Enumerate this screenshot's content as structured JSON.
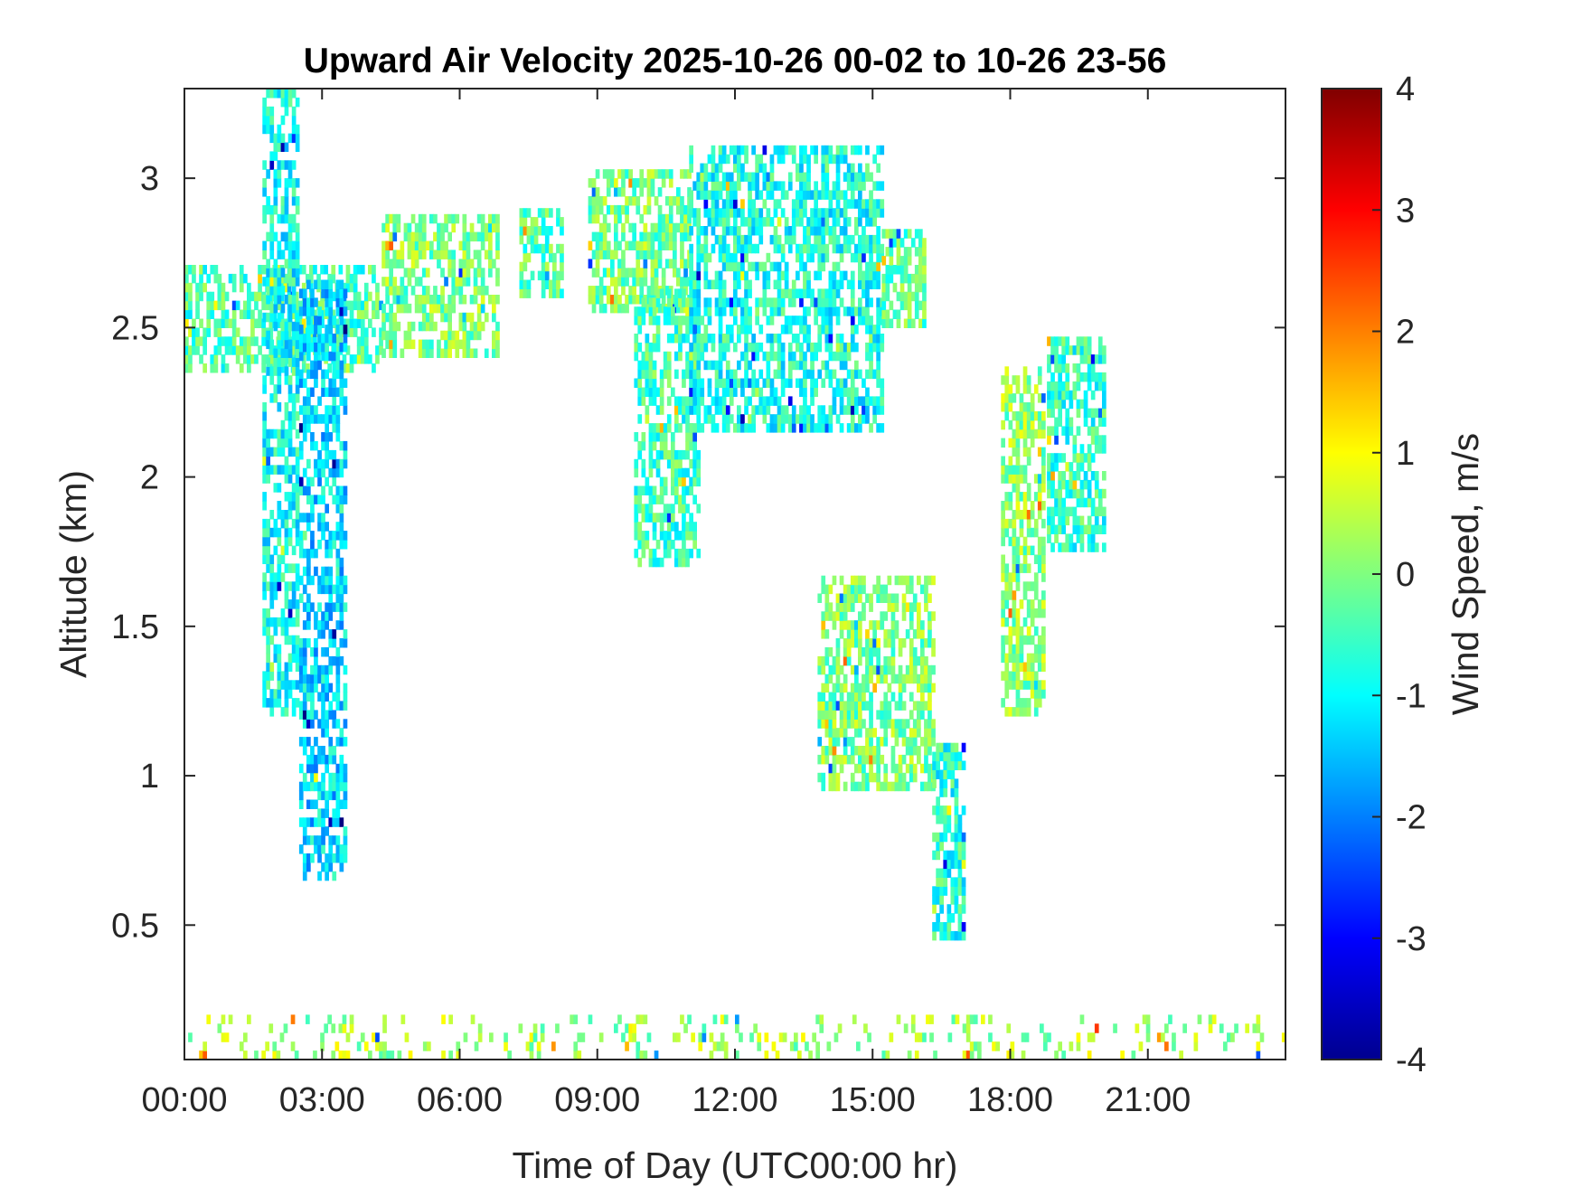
{
  "chart_data": {
    "type": "heatmap",
    "title": "Upward Air Velocity 2025-10-26 00-02 to 10-26 23-56",
    "xlabel": "Time of Day (UTC00:00 hr)",
    "ylabel": "Altitude (km)",
    "x_tick_labels": [
      "00:00",
      "03:00",
      "06:00",
      "09:00",
      "12:00",
      "15:00",
      "18:00",
      "21:00"
    ],
    "x_tick_hours": [
      0,
      3,
      6,
      9,
      12,
      15,
      18,
      21
    ],
    "xlim_hours": [
      0,
      24
    ],
    "y_tick_labels": [
      "0.5",
      "1",
      "1.5",
      "2",
      "2.5",
      "3"
    ],
    "y_ticks": [
      0.5,
      1,
      1.5,
      2,
      2.5,
      3
    ],
    "ylim": [
      0.05,
      3.3
    ],
    "grid": false,
    "colorbar": {
      "label": "Wind Speed, m/s",
      "colormap": "jet",
      "range": [
        -4,
        4
      ],
      "tick_labels": [
        "4",
        "3",
        "2",
        "1",
        "0",
        "-1",
        "-2",
        "-3",
        "-4"
      ],
      "ticks": [
        4,
        3,
        2,
        1,
        0,
        -1,
        -2,
        -3,
        -4
      ]
    },
    "echo_regions": [
      {
        "t0": 0.0,
        "t1": 4.3,
        "z0": 2.35,
        "z1": 2.68,
        "v": -0.4
      },
      {
        "t0": 4.3,
        "t1": 6.8,
        "z0": 2.4,
        "z1": 2.85,
        "v": 0.0
      },
      {
        "t0": 1.7,
        "t1": 2.5,
        "z0": 1.2,
        "z1": 3.3,
        "v": -0.9
      },
      {
        "t0": 2.5,
        "t1": 3.5,
        "z0": 0.65,
        "z1": 2.65,
        "v": -1.3
      },
      {
        "t0": 7.3,
        "t1": 8.2,
        "z0": 2.6,
        "z1": 2.88,
        "v": -0.3
      },
      {
        "t0": 8.8,
        "t1": 11.0,
        "z0": 2.55,
        "z1": 3.0,
        "v": -0.1
      },
      {
        "t0": 9.8,
        "t1": 11.2,
        "z0": 1.7,
        "z1": 2.6,
        "v": -0.5
      },
      {
        "t0": 11.0,
        "t1": 15.2,
        "z0": 2.15,
        "z1": 3.08,
        "v": -0.8
      },
      {
        "t0": 15.2,
        "t1": 16.1,
        "z0": 2.5,
        "z1": 2.8,
        "v": -0.2
      },
      {
        "t0": 13.8,
        "t1": 16.3,
        "z0": 0.95,
        "z1": 1.65,
        "v": 0.0
      },
      {
        "t0": 16.3,
        "t1": 17.0,
        "z0": 0.45,
        "z1": 1.1,
        "v": -0.7
      },
      {
        "t0": 17.8,
        "t1": 18.7,
        "z0": 1.2,
        "z1": 2.35,
        "v": 0.1
      },
      {
        "t0": 18.8,
        "t1": 20.0,
        "z0": 1.75,
        "z1": 2.45,
        "v": -0.6
      },
      {
        "t0": 0.0,
        "t1": 24.0,
        "z0": 0.05,
        "z1": 0.2,
        "v": 0.3
      }
    ]
  }
}
